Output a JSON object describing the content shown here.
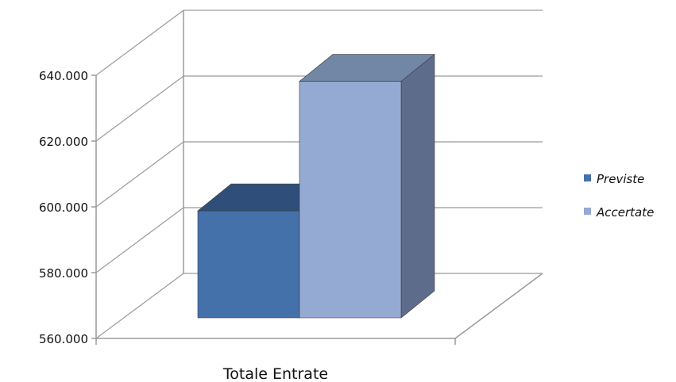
{
  "chart_data": {
    "type": "bar",
    "style": "3d-column",
    "categories": [
      "Totale Entrate"
    ],
    "series": [
      {
        "name": "Previste",
        "values": [
          593000
        ],
        "color": "#4471AA",
        "top_color": "#2F4F7A",
        "side_color": "#2E4A73"
      },
      {
        "name": "Accertate",
        "values": [
          633000
        ],
        "color": "#95AAD3",
        "top_color": "#7286A6",
        "side_color": "#5E6C8C"
      }
    ],
    "ylim": [
      560000,
      640000
    ],
    "yticks": [
      {
        "value": 560000,
        "label": "560.000"
      },
      {
        "value": 580000,
        "label": "580.000"
      },
      {
        "value": 600000,
        "label": "600.000"
      },
      {
        "value": 620000,
        "label": "620.000"
      },
      {
        "value": 640000,
        "label": "640.000"
      }
    ],
    "grid": true,
    "legend_position": "right",
    "title": "",
    "xlabel": "",
    "ylabel": ""
  }
}
